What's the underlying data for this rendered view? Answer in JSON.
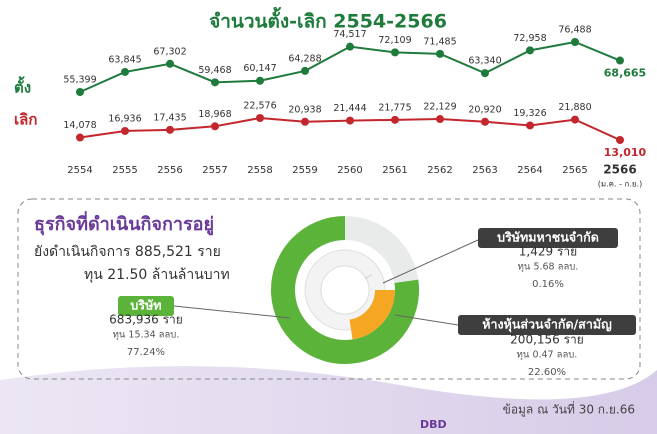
{
  "chart_data": [
    {
      "type": "line",
      "title": "จำนวนตั้ง-เลิก 2554-2566",
      "categories": [
        "2554",
        "2555",
        "2556",
        "2557",
        "2558",
        "2559",
        "2560",
        "2561",
        "2562",
        "2563",
        "2564",
        "2565",
        "2566"
      ],
      "x_note": "(ม.ค. - ก.ย.)",
      "series": [
        {
          "name": "ตั้ง",
          "color": "#1e7b3c",
          "values": [
            55399,
            63845,
            67302,
            59468,
            60147,
            64288,
            74517,
            72109,
            71485,
            63340,
            72958,
            76488,
            68665
          ],
          "value_labels": [
            "55,399",
            "63,845",
            "67,302",
            "59,468",
            "60,147",
            "64,288",
            "74,517",
            "72,109",
            "71,485",
            "63,340",
            "72,958",
            "76,488",
            "68,665"
          ]
        },
        {
          "name": "เลิก",
          "color": "#c3262d",
          "values": [
            14078,
            16936,
            17435,
            18968,
            22576,
            20938,
            21444,
            21775,
            22129,
            20920,
            19326,
            21880,
            13010
          ],
          "value_labels": [
            "14,078",
            "16,936",
            "17,435",
            "18,968",
            "22,576",
            "20,938",
            "21,444",
            "21,775",
            "22,129",
            "20,920",
            "19,326",
            "21,880",
            "13,010"
          ]
        }
      ]
    },
    {
      "type": "pie",
      "title": "ธุรกิจที่ดำเนินกิจการอยู่",
      "subtitle": [
        "ยังดำเนินกิจการ 885,521 ราย",
        "ทุน 21.50 ล้านล้านบาท"
      ],
      "categories": [
        "บริษัท",
        "ห้างหุ้นส่วนจำกัด/สามัญ",
        "บริษัทมหาชนจำกัด"
      ],
      "values": [
        77.24,
        22.6,
        0.16
      ],
      "value_labels": [
        "77.24%",
        "22.60%",
        "0.16%"
      ],
      "counts": [
        "683,936 ราย",
        "200,156 ราย",
        "1,429 ราย"
      ],
      "capital": [
        "ทุน 15.34 ลลบ.",
        "ทุน 0.47 ลลบ.",
        "ทุน 5.68 ลลบ."
      ],
      "colors": [
        "#5bb33a",
        "#f5a623",
        "#3c97d6"
      ]
    }
  ],
  "footer": {
    "logo": "DBD",
    "note": "ข้อมูล ณ วันที่ 30 ก.ย.66"
  }
}
